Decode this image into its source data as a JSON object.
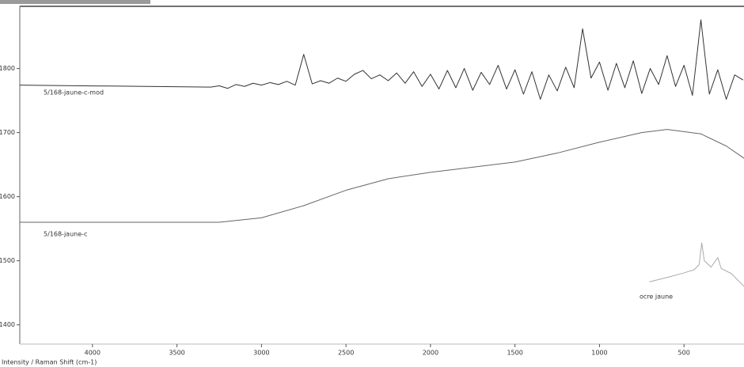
{
  "chart_data": {
    "type": "line",
    "xlabel": "Intensity / Raman Shift (cm-1)",
    "xlim": [
      4430,
      145
    ],
    "ylim": [
      1370,
      1897
    ],
    "xticks": [
      4000,
      3500,
      3000,
      2500,
      2000,
      1500,
      1000,
      500
    ],
    "yticks": [
      1400,
      1500,
      1600,
      1700,
      1800
    ],
    "grid": false,
    "series": [
      {
        "name": "5/168-jaune-c-mod",
        "color": "#333333",
        "x": [
          4430,
          3300,
          3250,
          3200,
          3150,
          3100,
          3050,
          3000,
          2950,
          2900,
          2850,
          2800,
          2750,
          2700,
          2650,
          2600,
          2550,
          2500,
          2450,
          2400,
          2350,
          2300,
          2250,
          2200,
          2150,
          2100,
          2050,
          2000,
          1950,
          1900,
          1850,
          1800,
          1750,
          1700,
          1650,
          1600,
          1550,
          1500,
          1450,
          1400,
          1350,
          1300,
          1250,
          1200,
          1150,
          1100,
          1050,
          1000,
          950,
          900,
          850,
          800,
          750,
          700,
          650,
          600,
          550,
          500,
          450,
          400,
          350,
          300,
          250,
          200,
          150
        ],
        "values": [
          1774,
          1771,
          1773,
          1769,
          1775,
          1772,
          1777,
          1774,
          1778,
          1775,
          1780,
          1774,
          1822,
          1776,
          1781,
          1777,
          1785,
          1780,
          1791,
          1797,
          1784,
          1790,
          1781,
          1793,
          1777,
          1795,
          1772,
          1791,
          1768,
          1797,
          1770,
          1800,
          1766,
          1794,
          1775,
          1805,
          1768,
          1798,
          1760,
          1795,
          1752,
          1790,
          1765,
          1802,
          1770,
          1862,
          1785,
          1810,
          1766,
          1808,
          1770,
          1812,
          1761,
          1800,
          1775,
          1820,
          1772,
          1805,
          1758,
          1876,
          1760,
          1798,
          1752,
          1790,
          1782
        ]
      },
      {
        "name": "5/168-jaune-c",
        "color": "#666666",
        "x": [
          4430,
          3250,
          3000,
          2750,
          2500,
          2250,
          2000,
          1750,
          1500,
          1250,
          1000,
          750,
          600,
          400,
          250,
          145
        ],
        "values": [
          1560,
          1560,
          1567,
          1586,
          1610,
          1628,
          1638,
          1646,
          1654,
          1668,
          1685,
          1700,
          1705,
          1698,
          1679,
          1660
        ]
      },
      {
        "name": "ocre jaune",
        "color": "#aaaaaa",
        "x": [
          705,
          600,
          500,
          440,
          410,
          395,
          380,
          340,
          300,
          280,
          220,
          145
        ],
        "values": [
          1467,
          1474,
          1481,
          1486,
          1494,
          1528,
          1500,
          1490,
          1505,
          1488,
          1480,
          1460
        ]
      }
    ]
  }
}
